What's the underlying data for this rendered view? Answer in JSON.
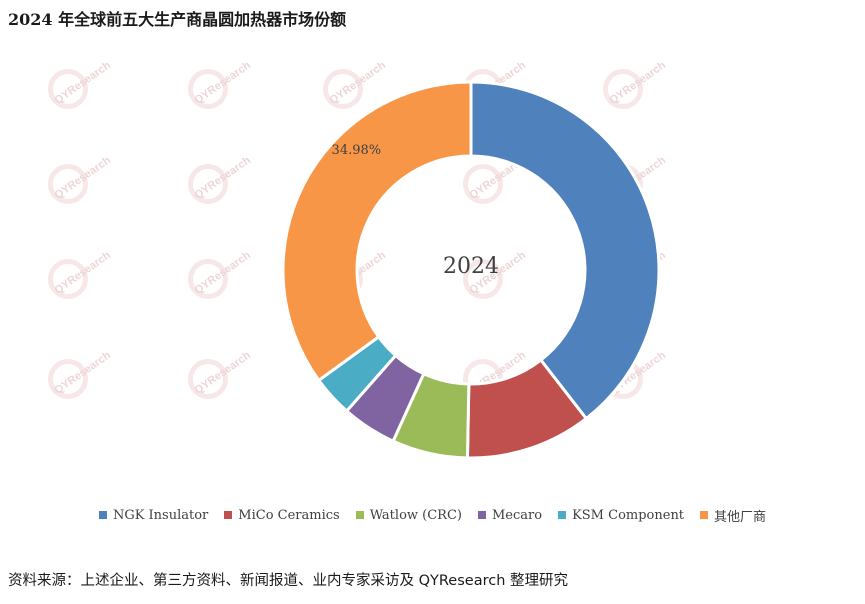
{
  "title": "2024 年全球前五大生产商晶圆加热器市场份额",
  "watermark_text": "QYResearch",
  "chart_data": {
    "type": "pie",
    "style": "donut",
    "center_label": "2024",
    "slices": [
      {
        "name": "NGK Insulator",
        "value": 39.5,
        "color": "#4f81bd",
        "label": ""
      },
      {
        "name": "MiCo Ceramics",
        "value": 10.8,
        "color": "#c0504d",
        "label": ""
      },
      {
        "name": "Watlow (CRC)",
        "value": 6.5,
        "color": "#9bbb59",
        "label": ""
      },
      {
        "name": "Mecaro",
        "value": 4.7,
        "color": "#8064a2",
        "label": ""
      },
      {
        "name": "KSM Component",
        "value": 3.52,
        "color": "#4bacc6",
        "label": ""
      },
      {
        "name": "其他厂商",
        "value": 34.98,
        "color": "#f79646",
        "label": "34.98%"
      }
    ],
    "legend_position": "bottom"
  },
  "source": "资料来源：上述企业、第三方资料、新闻报道、业内专家采访及 QYResearch 整理研究"
}
